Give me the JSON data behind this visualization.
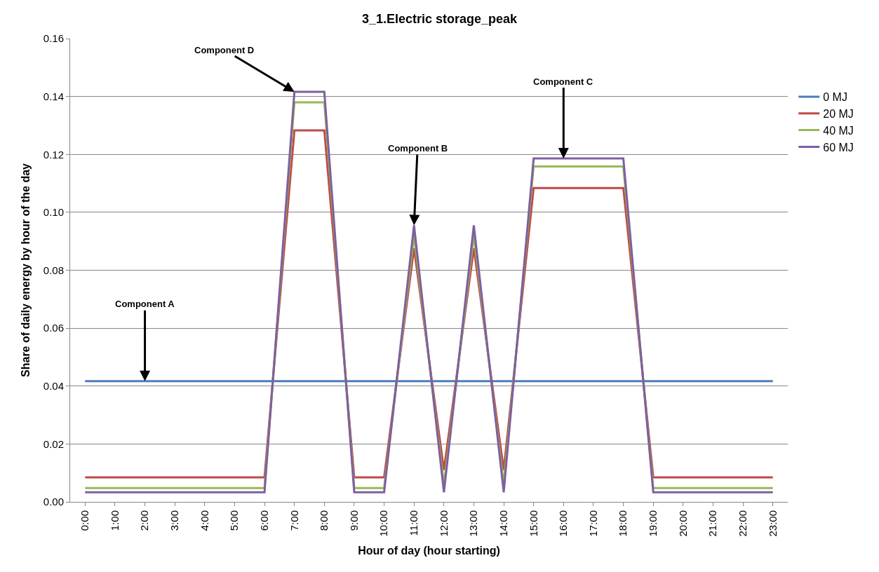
{
  "chart_data": {
    "type": "line",
    "title": "3_1.Electric storage_peak",
    "xlabel": "Hour of day (hour starting)",
    "ylabel": "Share of daily energy by hour of the day",
    "categories": [
      "0:00",
      "1:00",
      "2:00",
      "3:00",
      "4:00",
      "5:00",
      "6:00",
      "7:00",
      "8:00",
      "9:00",
      "10:00",
      "11:00",
      "12:00",
      "13:00",
      "14:00",
      "15:00",
      "16:00",
      "17:00",
      "18:00",
      "19:00",
      "20:00",
      "21:00",
      "22:00",
      "23:00"
    ],
    "series": [
      {
        "name": "0 MJ",
        "color": "#4a7ebb",
        "values": [
          0.0417,
          0.0417,
          0.0417,
          0.0417,
          0.0417,
          0.0417,
          0.0417,
          0.0417,
          0.0417,
          0.0417,
          0.0417,
          0.0417,
          0.0417,
          0.0417,
          0.0417,
          0.0417,
          0.0417,
          0.0417,
          0.0417,
          0.0417,
          0.0417,
          0.0417,
          0.0417,
          0.0417
        ]
      },
      {
        "name": "20 MJ",
        "color": "#be4b48",
        "values": [
          0.0085,
          0.0085,
          0.0085,
          0.0085,
          0.0085,
          0.0085,
          0.0085,
          0.1283,
          0.1283,
          0.0085,
          0.0085,
          0.0876,
          0.011,
          0.0876,
          0.011,
          0.1084,
          0.1084,
          0.1084,
          0.1084,
          0.0085,
          0.0085,
          0.0085,
          0.0085,
          0.0085
        ]
      },
      {
        "name": "40 MJ",
        "color": "#98b954",
        "values": [
          0.0048,
          0.0048,
          0.0048,
          0.0048,
          0.0048,
          0.0048,
          0.0048,
          0.138,
          0.138,
          0.0048,
          0.0048,
          0.092,
          0.006,
          0.092,
          0.006,
          0.1158,
          0.1158,
          0.1158,
          0.1158,
          0.0048,
          0.0048,
          0.0048,
          0.0048,
          0.0048
        ]
      },
      {
        "name": "60 MJ",
        "color": "#7d60a0",
        "values": [
          0.0033,
          0.0033,
          0.0033,
          0.0033,
          0.0033,
          0.0033,
          0.0033,
          0.1416,
          0.1416,
          0.0033,
          0.0033,
          0.0955,
          0.0033,
          0.0955,
          0.0033,
          0.1186,
          0.1186,
          0.1186,
          0.1186,
          0.0033,
          0.0033,
          0.0033,
          0.0033,
          0.0033
        ]
      }
    ],
    "ylim": [
      0,
      0.16
    ],
    "yticks": [
      {
        "value": 0,
        "label": "0.00"
      },
      {
        "value": 0.02,
        "label": "0.02"
      },
      {
        "value": 0.04,
        "label": "0.04"
      },
      {
        "value": 0.06,
        "label": "0.06"
      },
      {
        "value": 0.08,
        "label": "0.08"
      },
      {
        "value": 0.1,
        "label": "0.10"
      },
      {
        "value": 0.12,
        "label": "0.12"
      },
      {
        "value": 0.14,
        "label": "0.14"
      },
      {
        "value": 0.16,
        "label": "0.16"
      }
    ],
    "grid": "y",
    "legend": "right",
    "marker": "none",
    "line_style": "solid",
    "annotations": [
      {
        "text": "Component A",
        "x": "2:00",
        "y": 0.0417
      },
      {
        "text": "Component D",
        "x": "7:00",
        "y": 0.1416
      },
      {
        "text": "Component B",
        "x": "11:00",
        "y": 0.0955
      },
      {
        "text": "Component C",
        "x": "16:00",
        "y": 0.1186
      }
    ]
  }
}
